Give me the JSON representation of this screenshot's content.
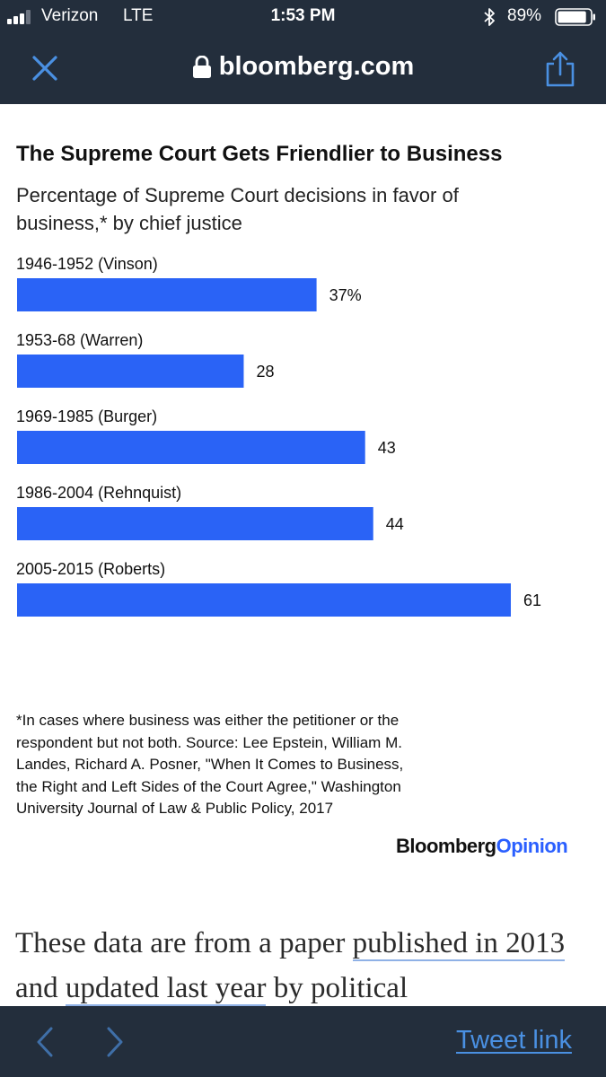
{
  "status_bar": {
    "carrier": "Verizon",
    "network": "LTE",
    "time": "1:53 PM",
    "battery_percent": "89%",
    "battery_level": 0.89,
    "signal_bars": 3,
    "icons": [
      "signal-icon",
      "bluetooth-icon",
      "battery-icon"
    ]
  },
  "url_bar": {
    "domain": "bloomberg.com",
    "icons": [
      "close-icon",
      "lock-icon",
      "share-icon"
    ]
  },
  "chart_data": {
    "type": "bar",
    "orientation": "horizontal",
    "title": "The Supreme Court Gets Friendlier to Business",
    "subtitle": "Percentage of Supreme Court decisions in favor of business,* by chief justice",
    "categories": [
      "1946-1952 (Vinson)",
      "1953-68 (Warren)",
      "1969-1985 (Burger)",
      "1986-2004 (Rehnquist)",
      "2005-2015 (Roberts)"
    ],
    "values": [
      37,
      28,
      43,
      44,
      61
    ],
    "value_labels": [
      "37%",
      "28",
      "43",
      "44",
      "61"
    ],
    "xlim": [
      0,
      61
    ],
    "grid": false,
    "bar_color": "#2a63f6",
    "footnote": "*In cases where business was either the petitioner or the respondent but not both. Source: Lee Epstein, William M. Landes, Richard A. Posner, \"When It Comes to Business, the Right and Left Sides of the Court Agree,\" Washington University Journal of Law & Public Policy, 2017",
    "brand": {
      "main": "Bloomberg",
      "accent": "Opinion"
    }
  },
  "article": {
    "text_before": "These data are from a paper ",
    "link1": "published in 2013",
    "text_middle": " and ",
    "link2": "updated last year",
    "text_after": " by political"
  },
  "bottom_bar": {
    "tweet_link": "Tweet link",
    "icons": [
      "chevron-left-icon",
      "chevron-right-icon"
    ]
  },
  "colors": {
    "toolbar_bg": "#232e3c",
    "toolbar_icon": "#4a90e2",
    "bar": "#2a63f6",
    "brand_accent": "#2a5fff",
    "link_underline": "#8fb1e6"
  }
}
